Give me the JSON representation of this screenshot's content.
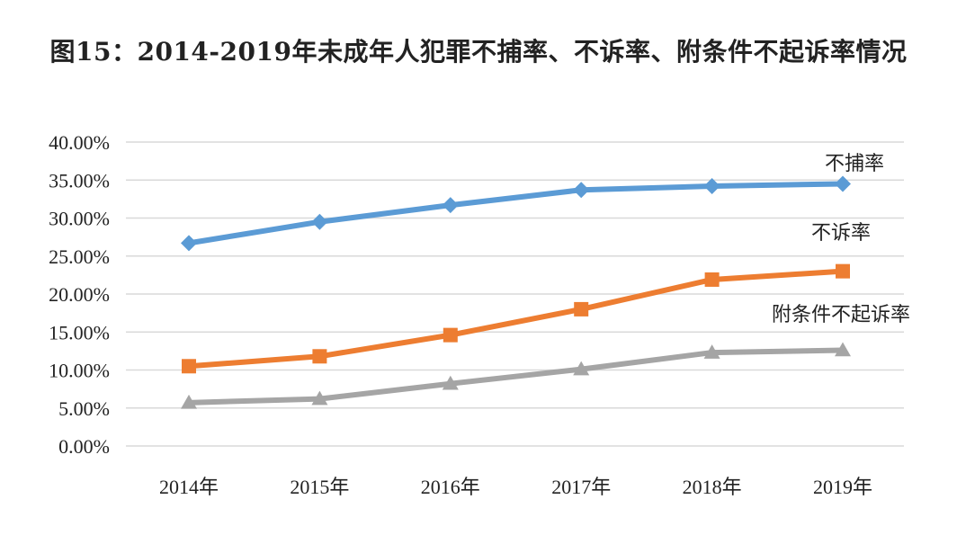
{
  "chart_data": {
    "type": "line",
    "title": "图15：2014-2019年未成年人犯罪不捕率、不诉率、附条件不起诉率情况",
    "xlabel": "",
    "ylabel": "",
    "categories": [
      "2014年",
      "2015年",
      "2016年",
      "2017年",
      "2018年",
      "2019年"
    ],
    "ylim": [
      0,
      40
    ],
    "yticks": [
      "0.00%",
      "5.00%",
      "10.00%",
      "15.00%",
      "20.00%",
      "25.00%",
      "30.00%",
      "35.00%",
      "40.00%"
    ],
    "grid": true,
    "series": [
      {
        "name": "不捕率",
        "values": [
          26.7,
          29.5,
          31.7,
          33.7,
          34.2,
          34.5
        ],
        "color": "#5b9bd5",
        "marker": "diamond"
      },
      {
        "name": "不诉率",
        "values": [
          10.5,
          11.8,
          14.6,
          18.0,
          21.9,
          23.0
        ],
        "color": "#ed7d31",
        "marker": "square"
      },
      {
        "name": "附条件不起诉率",
        "values": [
          5.7,
          6.2,
          8.2,
          10.1,
          12.3,
          12.6
        ],
        "color": "#a5a5a5",
        "marker": "triangle"
      }
    ]
  }
}
